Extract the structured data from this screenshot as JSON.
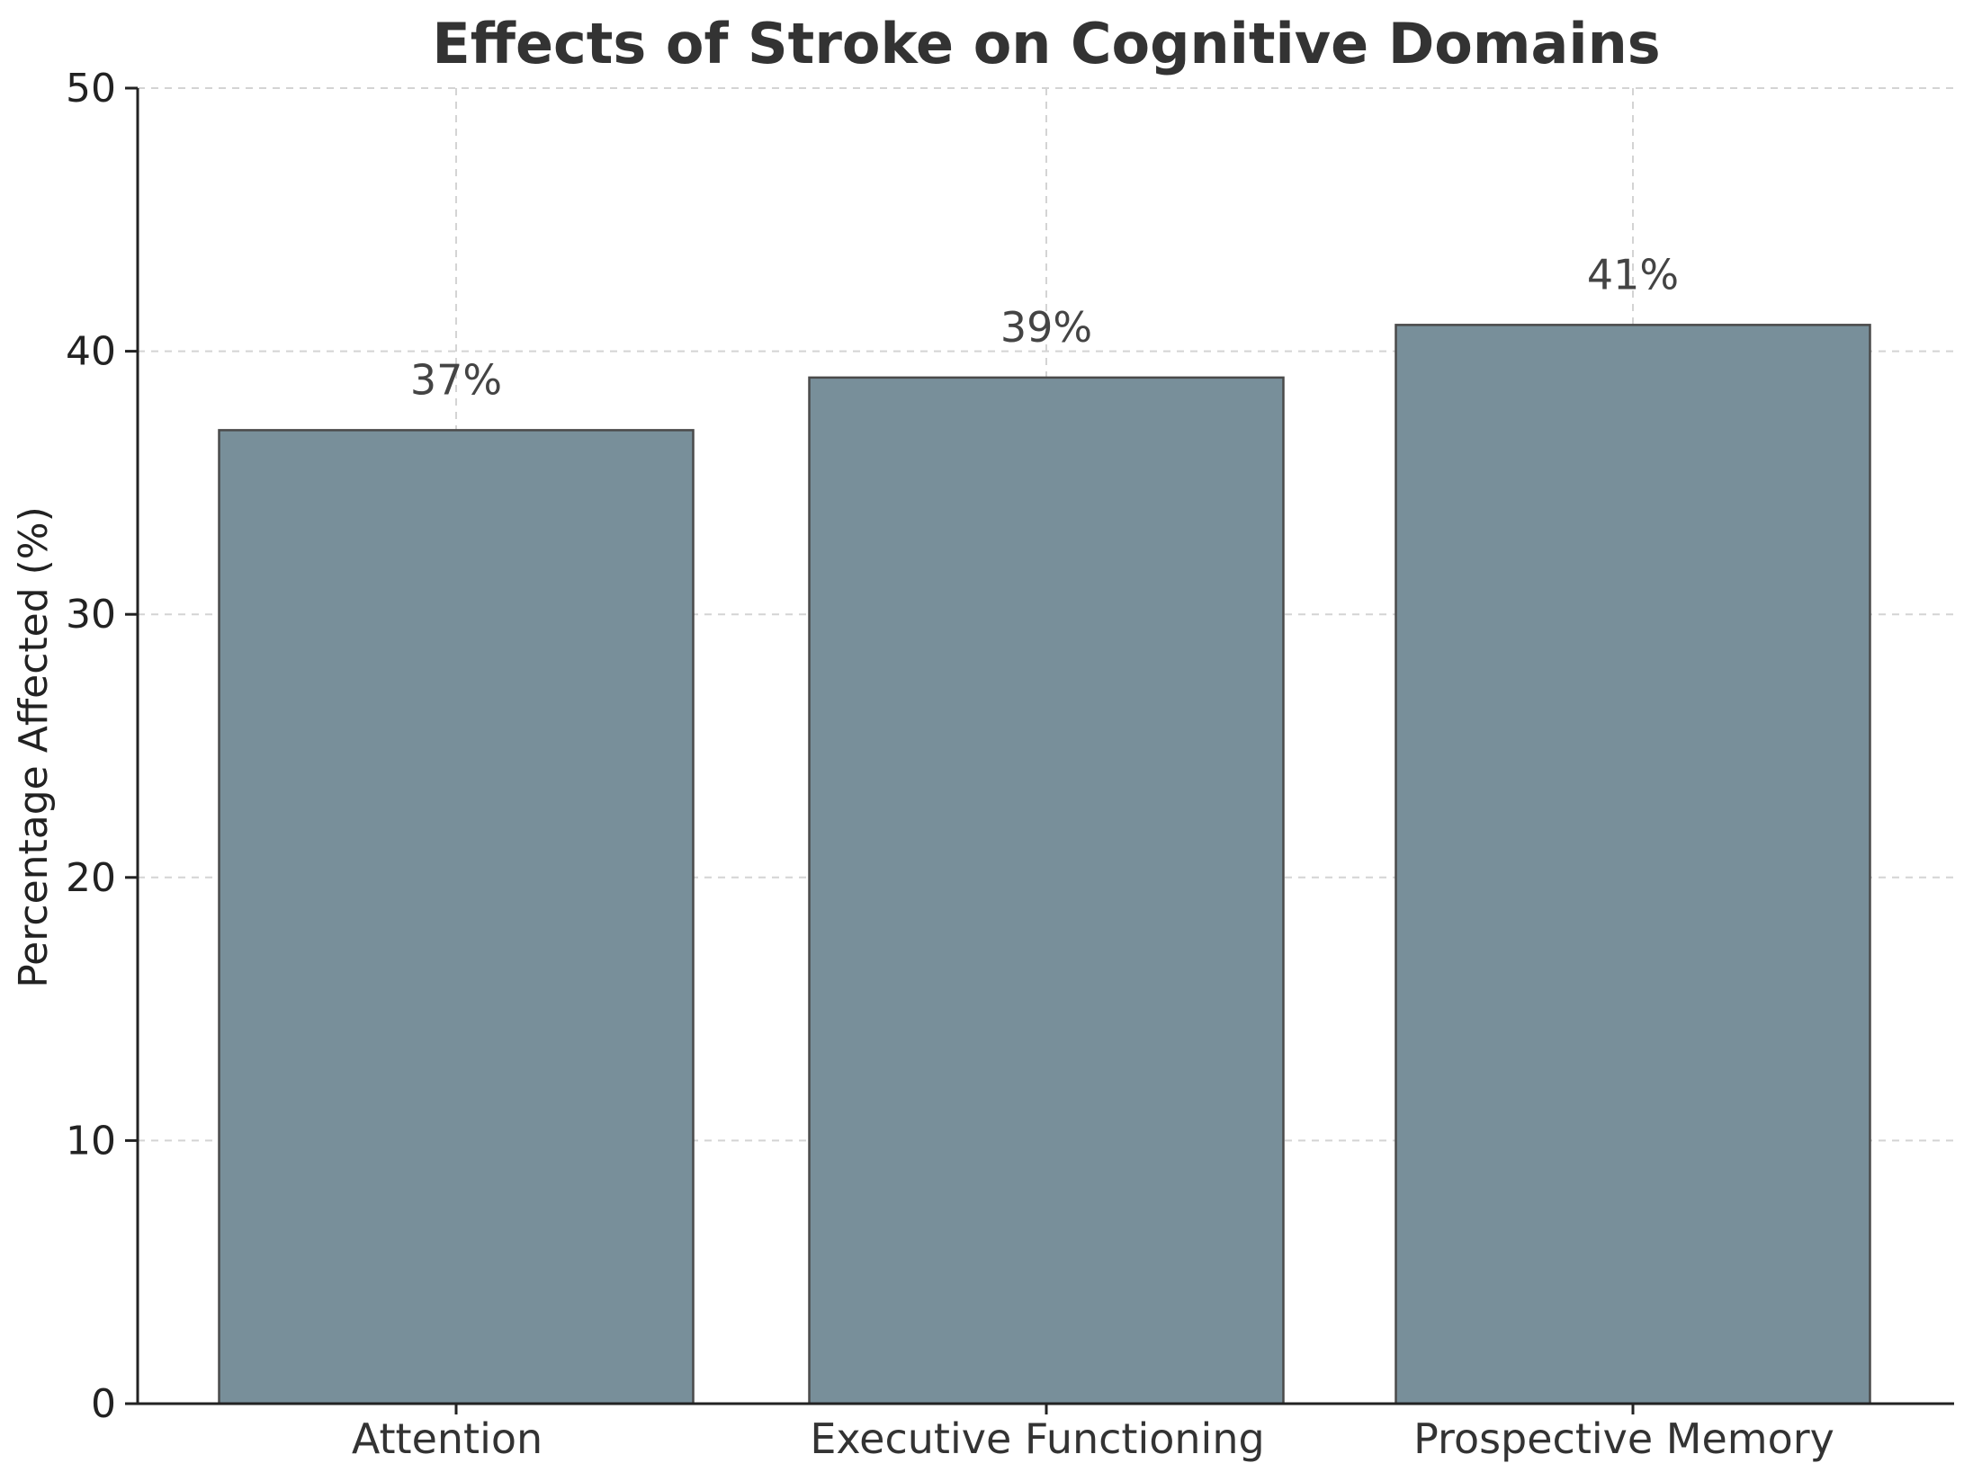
{
  "chart_data": {
    "type": "bar",
    "title": "Effects of Stroke on Cognitive Domains",
    "xlabel": "",
    "ylabel": "Percentage Affected (%)",
    "categories": [
      "Attention",
      "Executive Functioning",
      "Prospective Memory"
    ],
    "values": [
      37,
      39,
      41
    ],
    "data_labels": [
      "37%",
      "39%",
      "41%"
    ],
    "ylim": [
      0,
      50
    ],
    "yticks": [
      0,
      10,
      20,
      30,
      40,
      50
    ],
    "ytick_labels": [
      "0",
      "10",
      "20",
      "30",
      "40",
      "50"
    ],
    "grid": true,
    "legend": "none",
    "colors": {
      "bar_fill": "#788f9a",
      "bar_edge": "#4a4a4a",
      "grid": "#d4d4d4",
      "axis": "#222222",
      "title": "#333333"
    }
  }
}
